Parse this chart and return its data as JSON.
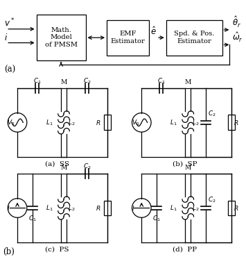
{
  "bg_color": "#ffffff",
  "line_color": "#000000",
  "block1_text": "Math.\nModel\nof PMSM",
  "block2_text": "EMF\nEstimator",
  "block3_text": "Spd. & Pos.\nEstimator",
  "label_a": "(a)",
  "label_b": "(b)",
  "circuit_labels": [
    "(a)  SS",
    "(b)  SP",
    "(c)  PS",
    "(d)  PP"
  ],
  "fontsize": 7.5
}
